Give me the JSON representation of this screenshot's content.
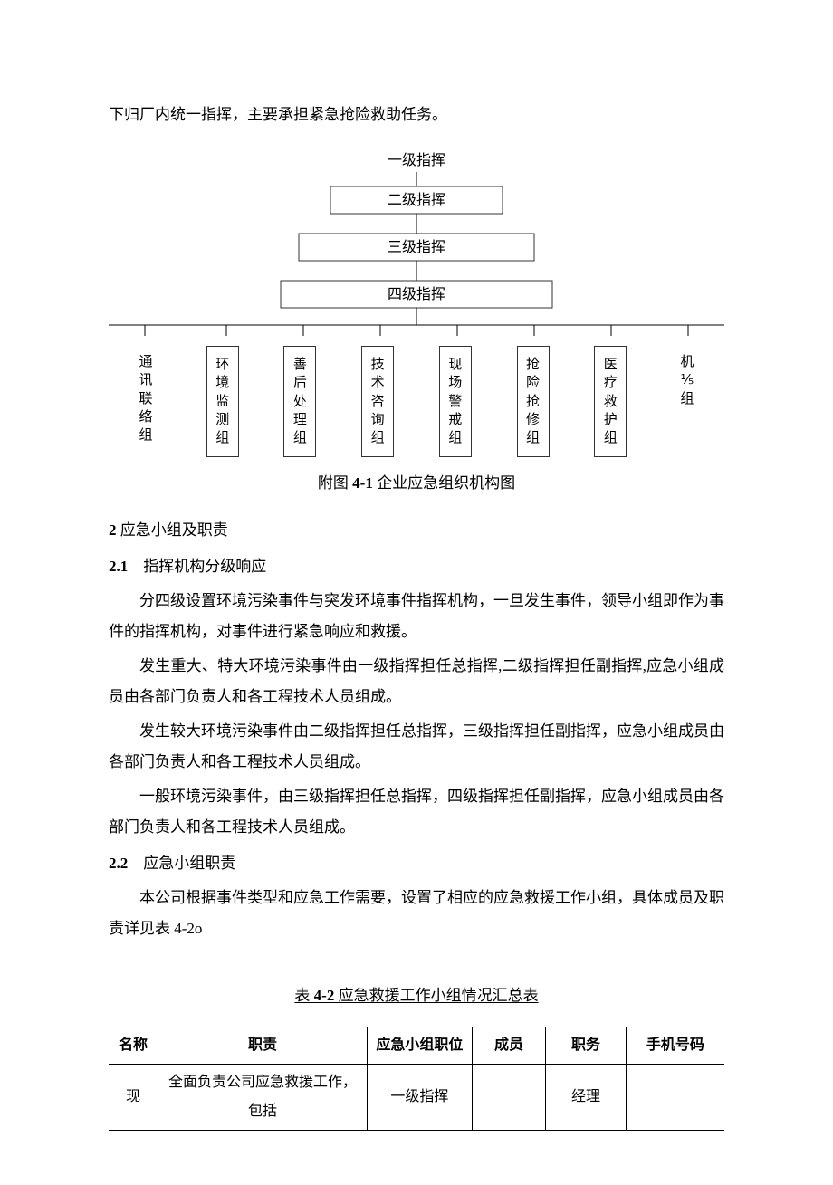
{
  "intro_line": "下归厂内统一指挥，主要承担紧急抢险救助任务。",
  "diagram": {
    "level1": "一级指挥",
    "level2": "二级指挥",
    "level3": "三级指挥",
    "level4": "四级指挥",
    "groups_unboxed_left": "通讯联络组",
    "groups_boxed": [
      "环境监测组",
      "善后处理组",
      "技术咨询组",
      "现场警戒组",
      "抢险抢修组",
      "医疗救护组"
    ],
    "groups_unboxed_right": "机⅕组",
    "box_border_color": "#333333",
    "line_color": "#000000",
    "background": "#ffffff",
    "font_size_pt": 12,
    "level_box_widths": [
      0,
      190,
      260,
      300
    ],
    "level_box_height": 30,
    "group_box_width": 34,
    "group_box_padding_v": 10,
    "caption_prefix": "附图",
    "caption_number": "4-1",
    "caption_text": "企业应急组织机构图"
  },
  "section2": {
    "number": "2",
    "title": "应急小组及职责"
  },
  "section2_1": {
    "number": "2.1",
    "title": "指挥机构分级响应",
    "p1": "分四级设置环境污染事件与突发环境事件指挥机构，一旦发生事件，领导小组即作为事件的指挥机构，对事件进行紧急响应和救援。",
    "p2": "发生重大、特大环境污染事件由一级指挥担任总指挥,二级指挥担任副指挥,应急小组成员由各部门负责人和各工程技术人员组成。",
    "p3": "发生较大环境污染事件由二级指挥担任总指挥，三级指挥担任副指挥，应急小组成员由各部门负责人和各工程技术人员组成。",
    "p4": "一般环境污染事件，由三级指挥担任总指挥，四级指挥担任副指挥，应急小组成员由各部门负责人和各工程技术人员组成。"
  },
  "section2_2": {
    "number": "2.2",
    "title": "应急小组职责",
    "p1": "本公司根据事件类型和应急工作需要，设置了相应的应急救援工作小组，具体成员及职责详见表 4-2o"
  },
  "table": {
    "title_prefix": "表",
    "title_number": "4-2",
    "title_text": "应急救援工作小组情况汇总表",
    "columns": [
      "名称",
      "职责",
      "应急小组职位",
      "成员",
      "职务",
      "手机号码"
    ],
    "col_widths_pct": [
      8,
      34,
      17,
      12,
      13,
      16
    ],
    "rows": [
      [
        "现",
        "全面负责公司应急救援工作，包括",
        "一级指挥",
        "",
        "经理",
        ""
      ]
    ],
    "border_color": "#000000",
    "font_size_pt": 12
  }
}
